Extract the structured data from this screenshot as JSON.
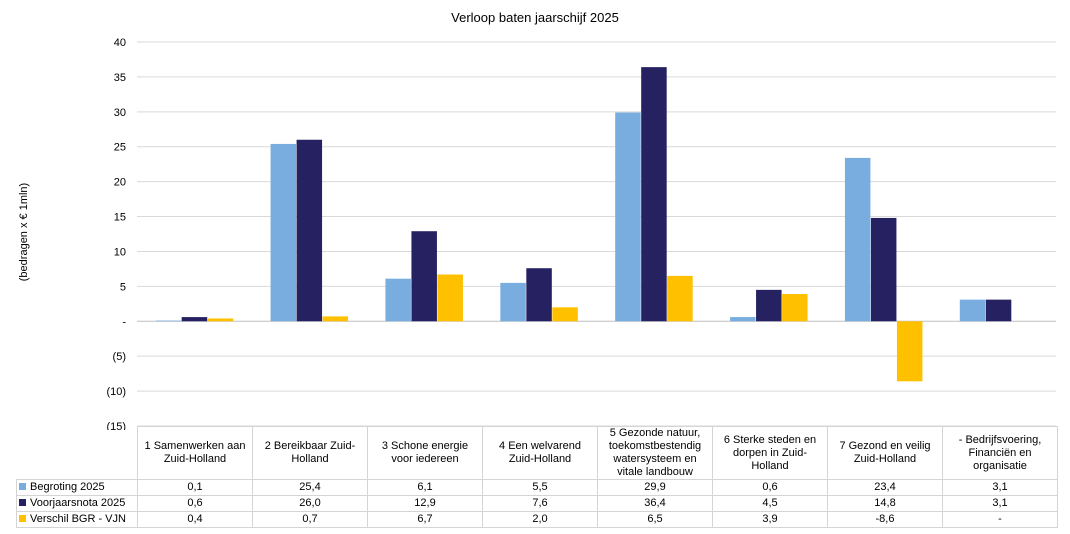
{
  "chart_data": {
    "type": "bar",
    "title": "Verloop baten jaarschijf 2025",
    "ylabel": "(bedragen x € 1mln)",
    "xlabel": "",
    "ylim": [
      -15,
      40
    ],
    "yticks": [
      40,
      35,
      30,
      25,
      20,
      15,
      10,
      5,
      0,
      -5,
      -10,
      -15
    ],
    "ytick_labels": [
      "40",
      "35",
      "30",
      "25",
      "20",
      "15",
      "10",
      "5",
      "-",
      "(5)",
      "(10)",
      "(15)"
    ],
    "grid": true,
    "legend": "data-table",
    "categories": [
      "1 Samenwerken aan Zuid-Holland",
      "2 Bereikbaar Zuid-Holland",
      "3 Schone energie voor iedereen",
      "4 Een welvarend Zuid-Holland",
      "5 Gezonde natuur, toekomstbestendig watersysteem en vitale landbouw",
      "6 Sterke steden en dorpen in Zuid-Holland",
      "7 Gezond en veilig Zuid-Holland",
      "- Bedrijfsvoering, Financiën en organisatie"
    ],
    "series": [
      {
        "name": "Begroting 2025",
        "color": "#7aaddf",
        "values": [
          0.1,
          25.4,
          6.1,
          5.5,
          29.9,
          0.6,
          23.4,
          3.1
        ],
        "labels": [
          "0,1",
          "25,4",
          "6,1",
          "5,5",
          "29,9",
          "0,6",
          "23,4",
          "3,1"
        ]
      },
      {
        "name": "Voorjaarsnota 2025",
        "color": "#262262",
        "values": [
          0.6,
          26.0,
          12.9,
          7.6,
          36.4,
          4.5,
          14.8,
          3.1
        ],
        "labels": [
          "0,6",
          "26,0",
          "12,9",
          "7,6",
          "36,4",
          "4,5",
          "14,8",
          "3,1"
        ]
      },
      {
        "name": "Verschil BGR - VJN",
        "color": "#ffc000",
        "values": [
          0.4,
          0.7,
          6.7,
          2.0,
          6.5,
          3.9,
          -8.6,
          0
        ],
        "labels": [
          "0,4",
          "0,7",
          "6,7",
          "2,0",
          "6,5",
          "3,9",
          "-8,6",
          "-"
        ]
      }
    ]
  }
}
